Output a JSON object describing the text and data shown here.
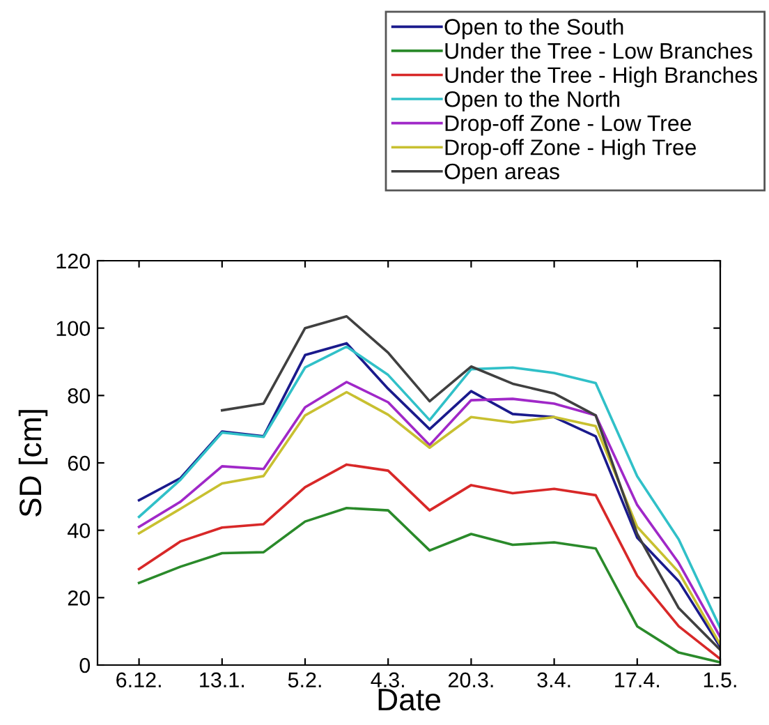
{
  "chart_data": {
    "type": "line",
    "xlabel": "Date",
    "ylabel": "SD [cm]",
    "categories": [
      "6.12.",
      null,
      "13.1.",
      null,
      "5.2.",
      null,
      "4.3.",
      null,
      "20.3.",
      null,
      "3.4.",
      null,
      "17.4.",
      null,
      "1.5."
    ],
    "ylim": [
      0,
      120
    ],
    "yticks": [
      0,
      20,
      40,
      60,
      80,
      100,
      120
    ],
    "grid": false,
    "legend": "top right",
    "marker": "none",
    "line_style": "solid",
    "series": [
      {
        "name": "Open to the South",
        "color": "#1a1a8c",
        "values": [
          48.9,
          55.5,
          69.3,
          67.9,
          92,
          95.5,
          82,
          70,
          81.3,
          74.5,
          73.6,
          67.9,
          37.8,
          24.9,
          5.4
        ]
      },
      {
        "name": "Under the Tree - Low Branches",
        "color": "#2a8a2a",
        "values": [
          24.4,
          29.2,
          33.2,
          33.5,
          42.6,
          46.6,
          45.9,
          34,
          38.9,
          35.7,
          36.4,
          34.6,
          11.5,
          3.7,
          0.8
        ]
      },
      {
        "name": "Under the Tree - High Branches",
        "color": "#d82828",
        "values": [
          28.5,
          36.7,
          40.8,
          41.8,
          52.8,
          59.5,
          57.7,
          45.9,
          53.4,
          51,
          52.3,
          50.4,
          26.5,
          11.5,
          1.8
        ]
      },
      {
        "name": "Open to the North",
        "color": "#30c0c8",
        "values": [
          44,
          55,
          69,
          67.7,
          88.3,
          94.5,
          86.1,
          72.7,
          87.8,
          88.3,
          86.7,
          83.7,
          56,
          37.3,
          11
        ]
      },
      {
        "name": "Drop-off Zone - Low Tree",
        "color": "#a028c8",
        "values": [
          41,
          48.5,
          59,
          58.2,
          76.5,
          84,
          78,
          65.3,
          78.6,
          79,
          77.6,
          74.1,
          47.5,
          30.3,
          8.3
        ]
      },
      {
        "name": "Drop-off Zone - High Tree",
        "color": "#c8c030",
        "values": [
          39.1,
          46.4,
          53.9,
          56.1,
          74.1,
          81,
          74.3,
          64.5,
          73.6,
          72,
          73.6,
          70.9,
          41,
          27.6,
          6.1
        ]
      },
      {
        "name": "Open areas",
        "color": "#404040",
        "values": [
          null,
          null,
          75.6,
          77.6,
          100,
          103.5,
          92.7,
          78.3,
          88.6,
          83.5,
          80.6,
          74.1,
          38.9,
          16.9,
          4.5
        ]
      }
    ]
  }
}
